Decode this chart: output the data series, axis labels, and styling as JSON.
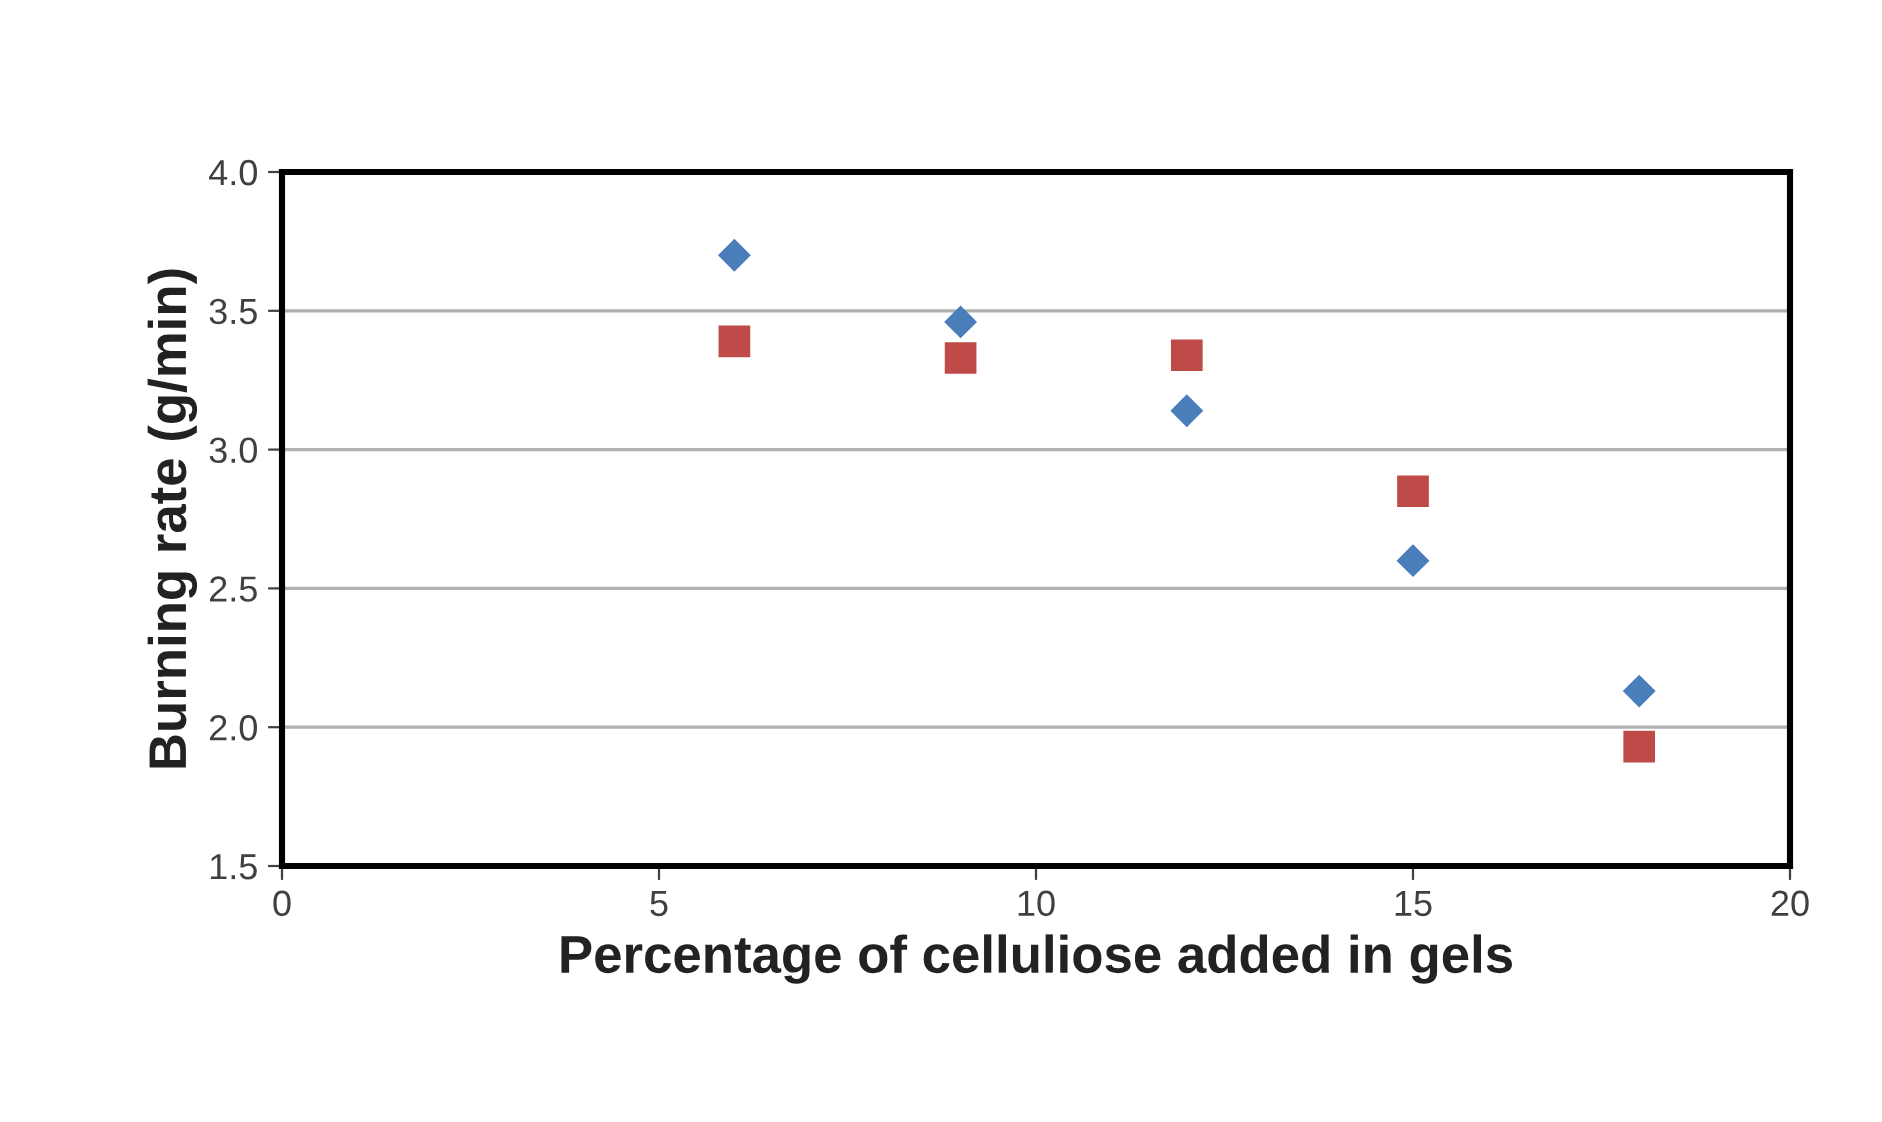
{
  "chart_data": {
    "type": "scatter",
    "xlabel": "Percentage of celluliose added in gels",
    "ylabel": "Burning rate (g/min)",
    "x": [
      6,
      9,
      12,
      15,
      18
    ],
    "series": [
      {
        "color": "#4a7ebb",
        "marker": "diamond",
        "values": [
          3.7,
          3.46,
          3.14,
          2.6,
          2.13
        ]
      },
      {
        "color": "#be4b48",
        "marker": "square",
        "values": [
          3.39,
          3.33,
          3.34,
          2.85,
          1.93
        ]
      }
    ],
    "xlim": [
      0,
      20
    ],
    "xticks": [
      0,
      5,
      10,
      15,
      20
    ],
    "ylim": [
      1.5,
      4.0
    ],
    "yticks": [
      {
        "value": 1.5,
        "label": "1.5"
      },
      {
        "value": 2.0,
        "label": "2.0"
      },
      {
        "value": 2.5,
        "label": "2.5"
      },
      {
        "value": 3.0,
        "label": "3.0"
      },
      {
        "value": 3.5,
        "label": "3.5"
      },
      {
        "value": 4.0,
        "label": "4.0"
      }
    ],
    "grid": "y",
    "legend": false
  }
}
